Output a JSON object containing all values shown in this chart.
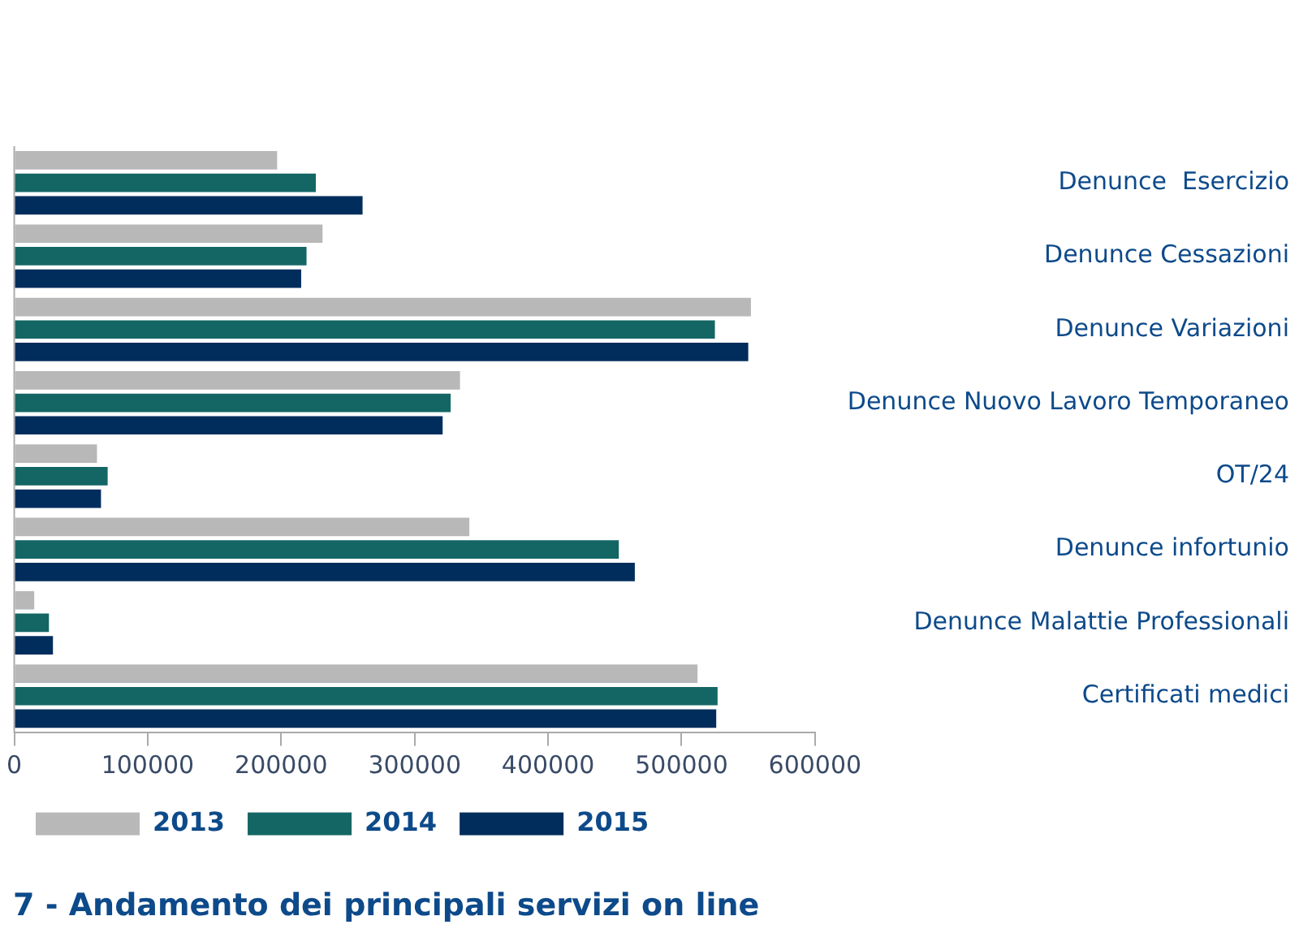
{
  "chart_data": {
    "type": "bar",
    "orientation": "horizontal",
    "title": "7 - Andamento dei principali servizi on line",
    "categories": [
      "Denunce  Esercizio",
      "Denunce Cessazioni",
      "Denunce Variazioni",
      "Denunce Nuovo Lavoro Temporaneo",
      "OT/24",
      "Denunce infortunio",
      "Denunce Malattie Professionali",
      "Certificati medici"
    ],
    "series": [
      {
        "name": "2013",
        "color": "#b8b8b8",
        "values": [
          197000,
          231000,
          552000,
          334000,
          62000,
          341000,
          15000,
          512000
        ]
      },
      {
        "name": "2014",
        "color": "#136664",
        "values": [
          226000,
          219000,
          525000,
          327000,
          70000,
          453000,
          26000,
          527000
        ]
      },
      {
        "name": "2015",
        "color": "#002d5c",
        "values": [
          261000,
          215000,
          550000,
          321000,
          65000,
          465000,
          29000,
          526000
        ]
      }
    ],
    "xlim": [
      0,
      600000
    ],
    "xticks": [
      0,
      100000,
      200000,
      300000,
      400000,
      500000,
      600000
    ],
    "grid": false,
    "legend": "bottom left"
  }
}
